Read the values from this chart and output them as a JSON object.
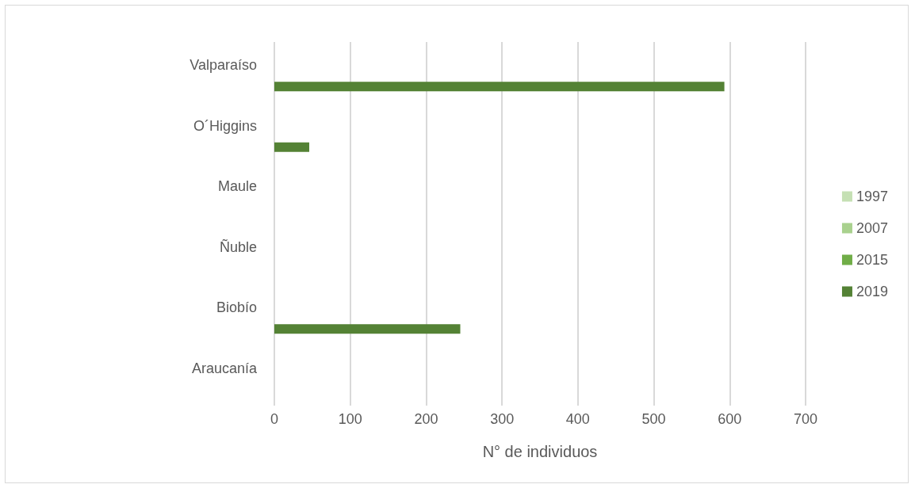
{
  "chart_data": {
    "type": "bar",
    "orientation": "horizontal",
    "categories": [
      "Valparaíso",
      "O´Higgins",
      "Maule",
      "Ñuble",
      "Biobío",
      "Araucanía"
    ],
    "series": [
      {
        "name": "1997",
        "color": "#c5e0b4",
        "values": [
          0,
          0,
          0,
          0,
          0,
          0
        ]
      },
      {
        "name": "2007",
        "color": "#a9d18e",
        "values": [
          0,
          0,
          0,
          0,
          0,
          0
        ]
      },
      {
        "name": "2015",
        "color": "#70ad47",
        "values": [
          0,
          0,
          0,
          0,
          0,
          0
        ]
      },
      {
        "name": "2019",
        "color": "#548235",
        "values": [
          593,
          46,
          0,
          0,
          245,
          0
        ]
      }
    ],
    "xlabel": "N° de individuos",
    "xlim": [
      0,
      700
    ],
    "xticks": [
      0,
      100,
      200,
      300,
      400,
      500,
      600,
      700
    ],
    "grid": "x",
    "legend": "right"
  }
}
